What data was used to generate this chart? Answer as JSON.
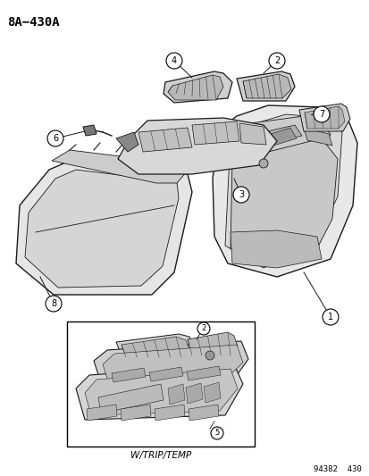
{
  "title": "8A−430A",
  "background_color": "#ffffff",
  "line_color": "#1a1a1a",
  "figure_width": 4.14,
  "figure_height": 5.33,
  "dpi": 100,
  "bottom_label": "W/TRIP/TEMP",
  "bottom_ref": "94382  430"
}
